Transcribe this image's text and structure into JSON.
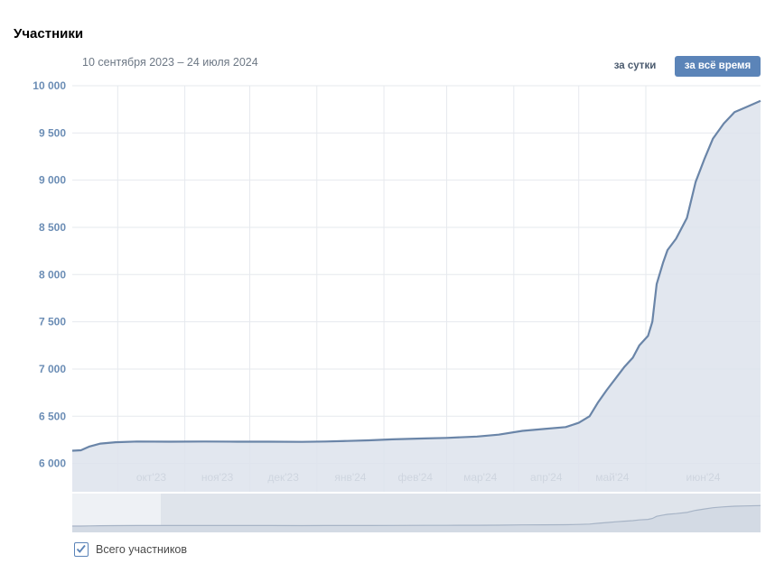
{
  "header": {
    "title": "Участники",
    "date_range": "10 сентября 2023 – 24 июля 2024"
  },
  "controls": {
    "per_day_label": "за сутки",
    "all_time_label": "за всё время",
    "active": "all_time"
  },
  "legend": {
    "label": "Всего участников",
    "checked": true
  },
  "colors": {
    "line": "#6a85a8",
    "fill": "#dde3ec",
    "grid": "#e6e9ee",
    "accent": "#5b84b8"
  },
  "chart_data": {
    "type": "area",
    "title": "Участники",
    "xlabel": "",
    "ylabel": "",
    "x_start": "2023-09-10",
    "x_end": "2024-07-24",
    "ylim": [
      5700,
      10000
    ],
    "y_ticks": [
      6000,
      6500,
      7000,
      7500,
      8000,
      8500,
      9000,
      9500,
      10000
    ],
    "y_tick_labels": [
      "6 000",
      "6 500",
      "7 000",
      "7 500",
      "8 000",
      "8 500",
      "9 000",
      "9 500",
      "10 000"
    ],
    "x_ticks": [
      {
        "date": "2023-10-01",
        "label": "окт'23"
      },
      {
        "date": "2023-11-01",
        "label": "ноя'23"
      },
      {
        "date": "2023-12-01",
        "label": "дек'23"
      },
      {
        "date": "2024-01-01",
        "label": "янв'24"
      },
      {
        "date": "2024-02-01",
        "label": "фев'24"
      },
      {
        "date": "2024-03-01",
        "label": "мар'24"
      },
      {
        "date": "2024-04-01",
        "label": "апр'24"
      },
      {
        "date": "2024-05-01",
        "label": "май'24"
      },
      {
        "date": "2024-06-01",
        "label": "июн'24"
      }
    ],
    "grid": true,
    "series": [
      {
        "name": "Всего участников",
        "points": [
          [
            "2023-09-10",
            6135
          ],
          [
            "2023-09-14",
            6140
          ],
          [
            "2023-09-18",
            6180
          ],
          [
            "2023-09-23",
            6210
          ],
          [
            "2023-09-30",
            6225
          ],
          [
            "2023-10-10",
            6232
          ],
          [
            "2023-10-25",
            6230
          ],
          [
            "2023-11-10",
            6232
          ],
          [
            "2023-11-25",
            6230
          ],
          [
            "2023-12-10",
            6230
          ],
          [
            "2023-12-25",
            6228
          ],
          [
            "2024-01-05",
            6232
          ],
          [
            "2024-01-15",
            6238
          ],
          [
            "2024-01-25",
            6245
          ],
          [
            "2024-02-05",
            6255
          ],
          [
            "2024-02-20",
            6265
          ],
          [
            "2024-03-01",
            6270
          ],
          [
            "2024-03-15",
            6285
          ],
          [
            "2024-03-25",
            6305
          ],
          [
            "2024-04-05",
            6345
          ],
          [
            "2024-04-15",
            6365
          ],
          [
            "2024-04-25",
            6385
          ],
          [
            "2024-05-01",
            6430
          ],
          [
            "2024-05-06",
            6500
          ],
          [
            "2024-05-10",
            6650
          ],
          [
            "2024-05-14",
            6780
          ],
          [
            "2024-05-18",
            6900
          ],
          [
            "2024-05-22",
            7020
          ],
          [
            "2024-05-26",
            7120
          ],
          [
            "2024-05-29",
            7250
          ],
          [
            "2024-06-02",
            7350
          ],
          [
            "2024-06-04",
            7500
          ],
          [
            "2024-06-06",
            7900
          ],
          [
            "2024-06-09",
            8130
          ],
          [
            "2024-06-11",
            8260
          ],
          [
            "2024-06-15",
            8380
          ],
          [
            "2024-06-20",
            8600
          ],
          [
            "2024-06-24",
            8980
          ],
          [
            "2024-06-28",
            9220
          ],
          [
            "2024-07-02",
            9440
          ],
          [
            "2024-07-07",
            9600
          ],
          [
            "2024-07-12",
            9720
          ],
          [
            "2024-07-17",
            9770
          ],
          [
            "2024-07-24",
            9840
          ]
        ]
      }
    ]
  }
}
